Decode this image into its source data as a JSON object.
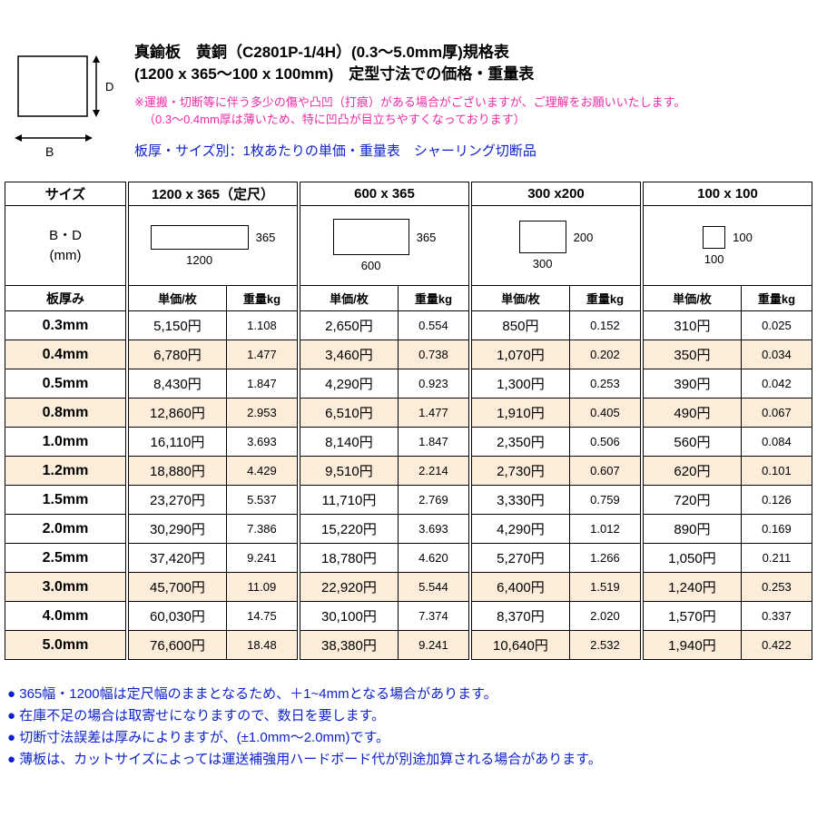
{
  "colors": {
    "magenta": "#ee2ba6",
    "blue": "#0e22cc",
    "row_shade": "#fcecda"
  },
  "header": {
    "title_line1": "真鍮板　黄銅（C2801P-1/4H）(0.3〜5.0mm厚)規格表",
    "title_line2": "(1200 x 365〜100 x 100mm)　定型寸法での価格・重量表",
    "warning_line1": "※運搬・切断等に伴う多少の傷や凸凹（打痕）がある場合がございますが、ご理解をお願いいたします。",
    "warning_line2": "（0.3〜0.4mm厚は薄いため、特に凹凸が目立ちやすくなっております）",
    "subtitle": "板厚・サイズ別：1枚あたりの単価・重量表　シャーリング切断品",
    "diagram": {
      "label_d": "D",
      "label_b": "B"
    }
  },
  "table": {
    "size_header": "サイズ",
    "bd_label": "B・D",
    "bd_unit": "(mm)",
    "thickness_header": "板厚み",
    "price_header": "単価/枚",
    "weight_header": "重量kg",
    "groups": [
      {
        "label": "1200 x 365（定尺）",
        "width_label": "1200",
        "height_label": "365"
      },
      {
        "label": "600 x 365",
        "width_label": "600",
        "height_label": "365"
      },
      {
        "label": "300 x200",
        "width_label": "300",
        "height_label": "200"
      },
      {
        "label": "100 x 100",
        "width_label": "100",
        "height_label": "100"
      }
    ],
    "rows": [
      {
        "thickness": "0.3mm",
        "shaded": false,
        "values": [
          [
            "5,150円",
            "1.108"
          ],
          [
            "2,650円",
            "0.554"
          ],
          [
            "850円",
            "0.152"
          ],
          [
            "310円",
            "0.025"
          ]
        ]
      },
      {
        "thickness": "0.4mm",
        "shaded": true,
        "values": [
          [
            "6,780円",
            "1.477"
          ],
          [
            "3,460円",
            "0.738"
          ],
          [
            "1,070円",
            "0.202"
          ],
          [
            "350円",
            "0.034"
          ]
        ]
      },
      {
        "thickness": "0.5mm",
        "shaded": false,
        "values": [
          [
            "8,430円",
            "1.847"
          ],
          [
            "4,290円",
            "0.923"
          ],
          [
            "1,300円",
            "0.253"
          ],
          [
            "390円",
            "0.042"
          ]
        ]
      },
      {
        "thickness": "0.8mm",
        "shaded": true,
        "values": [
          [
            "12,860円",
            "2.953"
          ],
          [
            "6,510円",
            "1.477"
          ],
          [
            "1,910円",
            "0.405"
          ],
          [
            "490円",
            "0.067"
          ]
        ]
      },
      {
        "thickness": "1.0mm",
        "shaded": false,
        "values": [
          [
            "16,110円",
            "3.693"
          ],
          [
            "8,140円",
            "1.847"
          ],
          [
            "2,350円",
            "0.506"
          ],
          [
            "560円",
            "0.084"
          ]
        ]
      },
      {
        "thickness": "1.2mm",
        "shaded": true,
        "values": [
          [
            "18,880円",
            "4.429"
          ],
          [
            "9,510円",
            "2.214"
          ],
          [
            "2,730円",
            "0.607"
          ],
          [
            "620円",
            "0.101"
          ]
        ]
      },
      {
        "thickness": "1.5mm",
        "shaded": false,
        "values": [
          [
            "23,270円",
            "5.537"
          ],
          [
            "11,710円",
            "2.769"
          ],
          [
            "3,330円",
            "0.759"
          ],
          [
            "720円",
            "0.126"
          ]
        ]
      },
      {
        "thickness": "2.0mm",
        "shaded": false,
        "values": [
          [
            "30,290円",
            "7.386"
          ],
          [
            "15,220円",
            "3.693"
          ],
          [
            "4,290円",
            "1.012"
          ],
          [
            "890円",
            "0.169"
          ]
        ]
      },
      {
        "thickness": "2.5mm",
        "shaded": false,
        "values": [
          [
            "37,420円",
            "9.241"
          ],
          [
            "18,780円",
            "4.620"
          ],
          [
            "5,270円",
            "1.266"
          ],
          [
            "1,050円",
            "0.211"
          ]
        ]
      },
      {
        "thickness": "3.0mm",
        "shaded": true,
        "values": [
          [
            "45,700円",
            "11.09"
          ],
          [
            "22,920円",
            "5.544"
          ],
          [
            "6,400円",
            "1.519"
          ],
          [
            "1,240円",
            "0.253"
          ]
        ]
      },
      {
        "thickness": "4.0mm",
        "shaded": false,
        "values": [
          [
            "60,030円",
            "14.75"
          ],
          [
            "30,100円",
            "7.374"
          ],
          [
            "8,370円",
            "2.020"
          ],
          [
            "1,570円",
            "0.337"
          ]
        ]
      },
      {
        "thickness": "5.0mm",
        "shaded": true,
        "values": [
          [
            "76,600円",
            "18.48"
          ],
          [
            "38,380円",
            "9.241"
          ],
          [
            "10,640円",
            "2.532"
          ],
          [
            "1,940円",
            "0.422"
          ]
        ]
      }
    ]
  },
  "footer": {
    "notes": [
      "● 365幅・1200幅は定尺幅のままとなるため、＋1~4mmとなる場合があります。",
      "● 在庫不足の場合は取寄せになりますので、数日を要します。",
      "● 切断寸法誤差は厚みによりますが、(±1.0mm〜2.0mm)です。",
      "● 薄板は、カットサイズによっては運送補強用ハードボード代が別途加算される場合があります。"
    ]
  }
}
